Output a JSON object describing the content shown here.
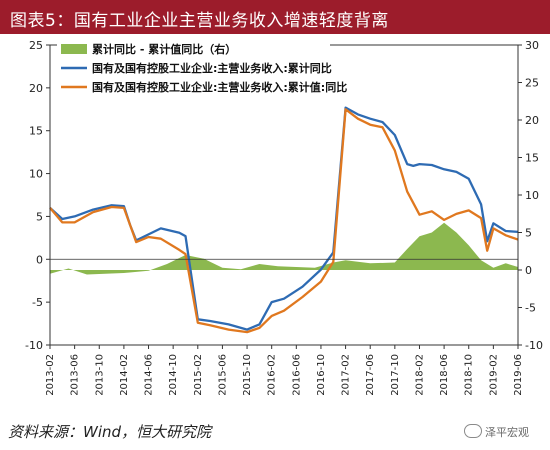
{
  "header": {
    "title": "图表5：国有工业企业主营业务收入增速轻度背离"
  },
  "footer": {
    "source": "资料来源：Wind，恒大研究院",
    "watermark": "泽平宏观"
  },
  "chart_data": {
    "type": "line",
    "title": "图表5：国有工业企业主营业务收入增速轻度背离",
    "xlabel": "",
    "ylabel": "",
    "left_ylim": [
      -10,
      25
    ],
    "left_yticks": [
      -10,
      -5,
      0,
      5,
      10,
      15,
      20,
      25
    ],
    "right_ylim": [
      -10,
      30
    ],
    "right_yticks": [
      -10,
      -5,
      0,
      5,
      10,
      15,
      20,
      25,
      30
    ],
    "x_tick_labels": [
      "2013-02",
      "2013-06",
      "2013-10",
      "2014-02",
      "2014-06",
      "2014-10",
      "2015-02",
      "2015-06",
      "2015-10",
      "2016-02",
      "2016-06",
      "2016-10",
      "2017-02",
      "2017-06",
      "2017-10",
      "2018-02",
      "2018-06",
      "2018-10",
      "2019-02",
      "2019-06"
    ],
    "x_start": "2013-02",
    "x_end": "2019-06",
    "grid": false,
    "legend_position": "top-left",
    "series": [
      {
        "name": "累计同比 - 累计值同比（右）",
        "kind": "area",
        "axis": "right",
        "color": "#8cb84f",
        "points": [
          [
            "2013-02",
            -0.5
          ],
          [
            "2013-05",
            0.2
          ],
          [
            "2013-08",
            -0.6
          ],
          [
            "2013-11",
            -0.5
          ],
          [
            "2014-02",
            -0.4
          ],
          [
            "2014-06",
            -0.1
          ],
          [
            "2014-09",
            0.8
          ],
          [
            "2014-12",
            2.0
          ],
          [
            "2015-03",
            1.5
          ],
          [
            "2015-06",
            0.3
          ],
          [
            "2015-09",
            0.1
          ],
          [
            "2015-12",
            0.8
          ],
          [
            "2016-03",
            0.5
          ],
          [
            "2016-06",
            0.4
          ],
          [
            "2016-09",
            0.3
          ],
          [
            "2016-12",
            1.0
          ],
          [
            "2017-02",
            1.3
          ],
          [
            "2017-06",
            0.9
          ],
          [
            "2017-10",
            1.0
          ],
          [
            "2017-12",
            2.8
          ],
          [
            "2018-02",
            4.5
          ],
          [
            "2018-04",
            5.0
          ],
          [
            "2018-06",
            6.3
          ],
          [
            "2018-08",
            5.0
          ],
          [
            "2018-10",
            3.3
          ],
          [
            "2018-12",
            1.3
          ],
          [
            "2019-02",
            0.3
          ],
          [
            "2019-04",
            0.9
          ],
          [
            "2019-06",
            0.4
          ]
        ]
      },
      {
        "name": "国有及国有控股工业企业:主营业务收入:累计同比",
        "kind": "line",
        "axis": "left",
        "color": "#2e6bb3",
        "points": [
          [
            "2013-02",
            6.0
          ],
          [
            "2013-04",
            4.7
          ],
          [
            "2013-06",
            5.0
          ],
          [
            "2013-09",
            5.8
          ],
          [
            "2013-12",
            6.3
          ],
          [
            "2014-02",
            6.2
          ],
          [
            "2014-03",
            4.0
          ],
          [
            "2014-04",
            2.2
          ],
          [
            "2014-06",
            2.9
          ],
          [
            "2014-08",
            3.6
          ],
          [
            "2014-11",
            3.1
          ],
          [
            "2014-12",
            2.7
          ],
          [
            "2015-02",
            -7.0
          ],
          [
            "2015-04",
            -7.2
          ],
          [
            "2015-07",
            -7.6
          ],
          [
            "2015-10",
            -8.2
          ],
          [
            "2015-12",
            -7.6
          ],
          [
            "2016-02",
            -5.0
          ],
          [
            "2016-04",
            -4.6
          ],
          [
            "2016-07",
            -3.2
          ],
          [
            "2016-10",
            -1.2
          ],
          [
            "2016-12",
            0.8
          ],
          [
            "2017-02",
            17.7
          ],
          [
            "2017-04",
            16.9
          ],
          [
            "2017-06",
            16.4
          ],
          [
            "2017-08",
            16.0
          ],
          [
            "2017-10",
            14.5
          ],
          [
            "2017-12",
            11.1
          ],
          [
            "2018-01",
            10.9
          ],
          [
            "2018-02",
            11.1
          ],
          [
            "2018-04",
            11.0
          ],
          [
            "2018-06",
            10.5
          ],
          [
            "2018-08",
            10.2
          ],
          [
            "2018-10",
            9.4
          ],
          [
            "2018-12",
            6.4
          ],
          [
            "2019-01",
            2.1
          ],
          [
            "2019-02",
            4.2
          ],
          [
            "2019-04",
            3.3
          ],
          [
            "2019-06",
            3.2
          ]
        ]
      },
      {
        "name": "国有及国有控股工业企业:主营业务收入:累计值:同比",
        "kind": "line",
        "axis": "left",
        "color": "#e0781f",
        "points": [
          [
            "2013-02",
            6.0
          ],
          [
            "2013-04",
            4.3
          ],
          [
            "2013-06",
            4.3
          ],
          [
            "2013-09",
            5.5
          ],
          [
            "2013-12",
            6.1
          ],
          [
            "2014-02",
            6.0
          ],
          [
            "2014-03",
            4.0
          ],
          [
            "2014-04",
            2.0
          ],
          [
            "2014-06",
            2.6
          ],
          [
            "2014-08",
            2.4
          ],
          [
            "2014-11",
            1.1
          ],
          [
            "2014-12",
            0.6
          ],
          [
            "2015-02",
            -7.4
          ],
          [
            "2015-04",
            -7.7
          ],
          [
            "2015-07",
            -8.2
          ],
          [
            "2015-10",
            -8.5
          ],
          [
            "2015-12",
            -8.0
          ],
          [
            "2016-02",
            -6.6
          ],
          [
            "2016-04",
            -6.0
          ],
          [
            "2016-07",
            -4.4
          ],
          [
            "2016-10",
            -2.6
          ],
          [
            "2016-12",
            -0.3
          ],
          [
            "2017-02",
            17.5
          ],
          [
            "2017-04",
            16.4
          ],
          [
            "2017-06",
            15.7
          ],
          [
            "2017-08",
            15.4
          ],
          [
            "2017-10",
            12.7
          ],
          [
            "2017-12",
            7.9
          ],
          [
            "2018-02",
            5.2
          ],
          [
            "2018-04",
            5.6
          ],
          [
            "2018-06",
            4.6
          ],
          [
            "2018-08",
            5.3
          ],
          [
            "2018-10",
            5.7
          ],
          [
            "2018-12",
            4.8
          ],
          [
            "2019-01",
            1.0
          ],
          [
            "2019-02",
            3.6
          ],
          [
            "2019-04",
            2.8
          ],
          [
            "2019-06",
            2.3
          ]
        ]
      }
    ]
  }
}
